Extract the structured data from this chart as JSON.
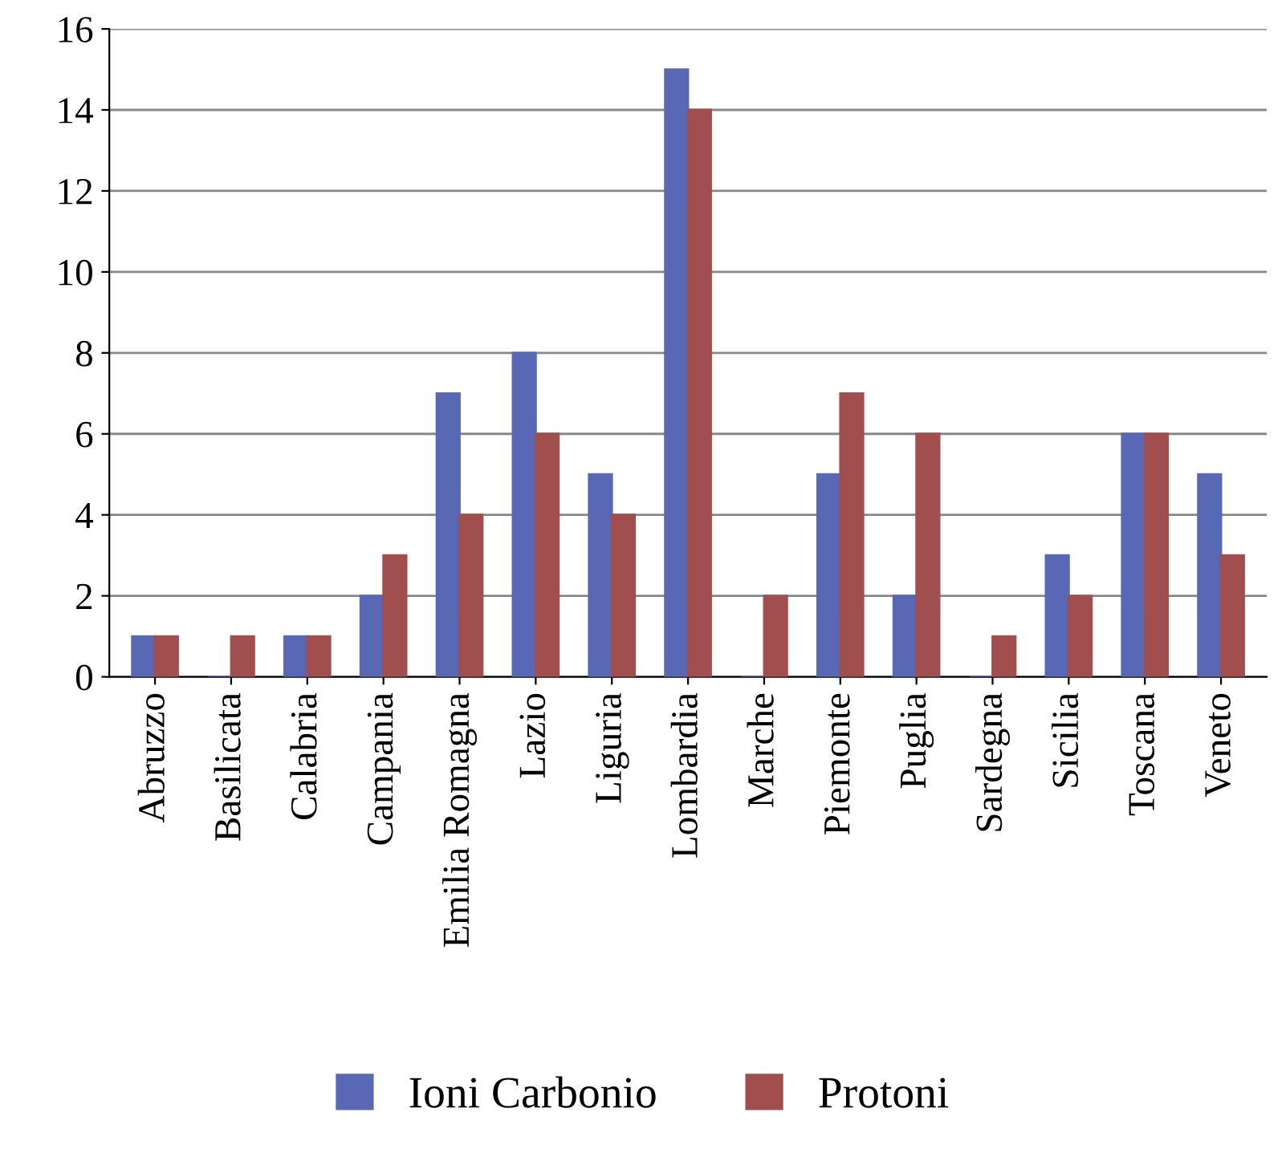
{
  "chart_data": {
    "type": "bar",
    "categories": [
      "Abruzzo",
      "Basilicata",
      "Calabria",
      "Campania",
      "Emilia Romagna",
      "Lazio",
      "Liguria",
      "Lombardia",
      "Marche",
      "Piemonte",
      "Puglia",
      "Sardegna",
      "Sicilia",
      "Toscana",
      "Veneto"
    ],
    "series": [
      {
        "name": "Ioni Carbonio",
        "color": "#5868b4",
        "values": [
          1,
          0,
          1,
          2,
          7,
          8,
          5,
          15,
          0,
          5,
          2,
          0,
          3,
          6,
          5
        ]
      },
      {
        "name": "Protoni",
        "color": "#a04e4e",
        "values": [
          1,
          1,
          1,
          3,
          4,
          6,
          4,
          14,
          2,
          7,
          6,
          1,
          2,
          6,
          3
        ]
      }
    ],
    "ylim": [
      0,
      16
    ],
    "yticks": [
      0,
      2,
      4,
      6,
      8,
      10,
      12,
      14,
      16
    ],
    "grid": "y",
    "legend": "bottom"
  }
}
